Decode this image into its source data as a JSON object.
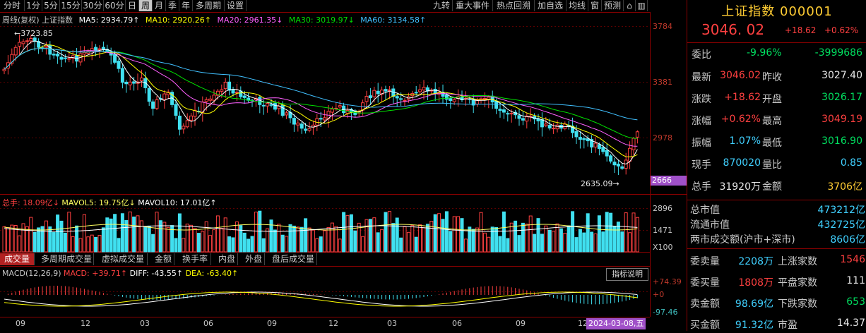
{
  "toolbar": {
    "left": [
      "分时",
      "1分",
      "5分",
      "15分",
      "30分",
      "60分",
      "日",
      "周",
      "月",
      "季",
      "年",
      "多周期",
      "设置"
    ],
    "active_index": 7,
    "right": [
      "九转",
      "重大事件",
      "热点回溯",
      "加自选",
      "均线",
      "窗",
      "预测"
    ]
  },
  "main_legend": {
    "title": "周线(复权)  上证指数",
    "ma5": "MA5: 2934.79↑",
    "ma10": "MA10: 2920.26↑",
    "ma20": "MA20: 2961.35↓",
    "ma30": "MA30: 3019.97↓",
    "ma60": "MA60: 3134.58↑"
  },
  "price_axis": [
    "3784",
    "3381",
    "2978",
    "2666"
  ],
  "high_label": "3723.85",
  "low_label": "2635.09",
  "vol_legend": {
    "total": "总手: 18.09亿↓",
    "mavol5": "MAVOL5: 19.75亿↓",
    "mavol10": "MAVOL10: 17.01亿↑"
  },
  "vol_axis": [
    "2896",
    "1471",
    "X100"
  ],
  "tabs": [
    "成交量",
    "多周期成交量",
    "虚拟成交量",
    "金额",
    "换手率",
    "内盘",
    "外盘",
    "盘后成交量"
  ],
  "macd_legend": {
    "name": "MACD(12,26,9)",
    "macd": "MACD: +39.71↑",
    "diff": "DIFF: -43.55↑",
    "dea": "DEA: -63.40↑"
  },
  "macd_help": "指标说明",
  "macd_axis": [
    "+74.39",
    "+0",
    "-97.46"
  ],
  "x_axis": [
    "09",
    "12",
    "03",
    "06",
    "09",
    "12",
    "03",
    "06",
    "09",
    "12",
    "3"
  ],
  "date_badge": "2024-03-08,五",
  "colors": {
    "up": "#ff4040",
    "down": "#40e0f0",
    "ma5": "#ffffff",
    "ma10": "#ffff00",
    "ma20": "#ff60ff",
    "ma30": "#00e000",
    "ma60": "#40c0ff"
  },
  "quote": {
    "title": "上证指数 000001",
    "price": "3046. 02",
    "change": "+18.62",
    "pct": "+0.62%",
    "rows": [
      {
        "l": "委比",
        "v": "-9.96%",
        "v2": "-3999686",
        "c1": "green",
        "c2": "green"
      },
      {
        "l": "最新",
        "v": "3046.02",
        "l2": "昨收",
        "v2": "3027.40",
        "c1": "red",
        "c2": "white"
      },
      {
        "l": "涨跌",
        "v": "+18.62",
        "l2": "开盘",
        "v2": "3026.17",
        "c1": "red",
        "c2": "green"
      },
      {
        "l": "涨幅",
        "v": "+0.62%",
        "l2": "最高",
        "v2": "3049.19",
        "c1": "red",
        "c2": "red"
      },
      {
        "l": "振幅",
        "v": "1.07%",
        "l2": "最低",
        "v2": "3016.90",
        "c1": "cyan",
        "c2": "green"
      },
      {
        "l": "现手",
        "v": "870020",
        "l2": "量比",
        "v2": "0.85",
        "c1": "cyan",
        "c2": "cyan"
      },
      {
        "l": "总手",
        "v": "31920万",
        "l2": "金额",
        "v2": "3706亿",
        "c1": "white",
        "c2": "yellow"
      }
    ],
    "market": [
      {
        "l": "总市值",
        "v": "473212亿"
      },
      {
        "l": "流通市值",
        "v": "432725亿"
      },
      {
        "l": "两市成交额(沪市+深市)",
        "v": "8606亿"
      }
    ],
    "orders": [
      {
        "l": "委卖量",
        "v": "2208万",
        "l2": "上涨家数",
        "v2": "1546",
        "c1": "cyan",
        "c2": "red"
      },
      {
        "l": "委买量",
        "v": "1808万",
        "l2": "平盘家数",
        "v2": "111",
        "c1": "red",
        "c2": "white"
      },
      {
        "l": "卖金额",
        "v": "98.69亿",
        "l2": "下跌家数",
        "v2": "653",
        "c1": "cyan",
        "c2": "green"
      },
      {
        "l": "买金额",
        "v": "91.32亿",
        "l2": "市盈",
        "v2": "14.37",
        "c1": "cyan",
        "c2": "white"
      }
    ]
  }
}
